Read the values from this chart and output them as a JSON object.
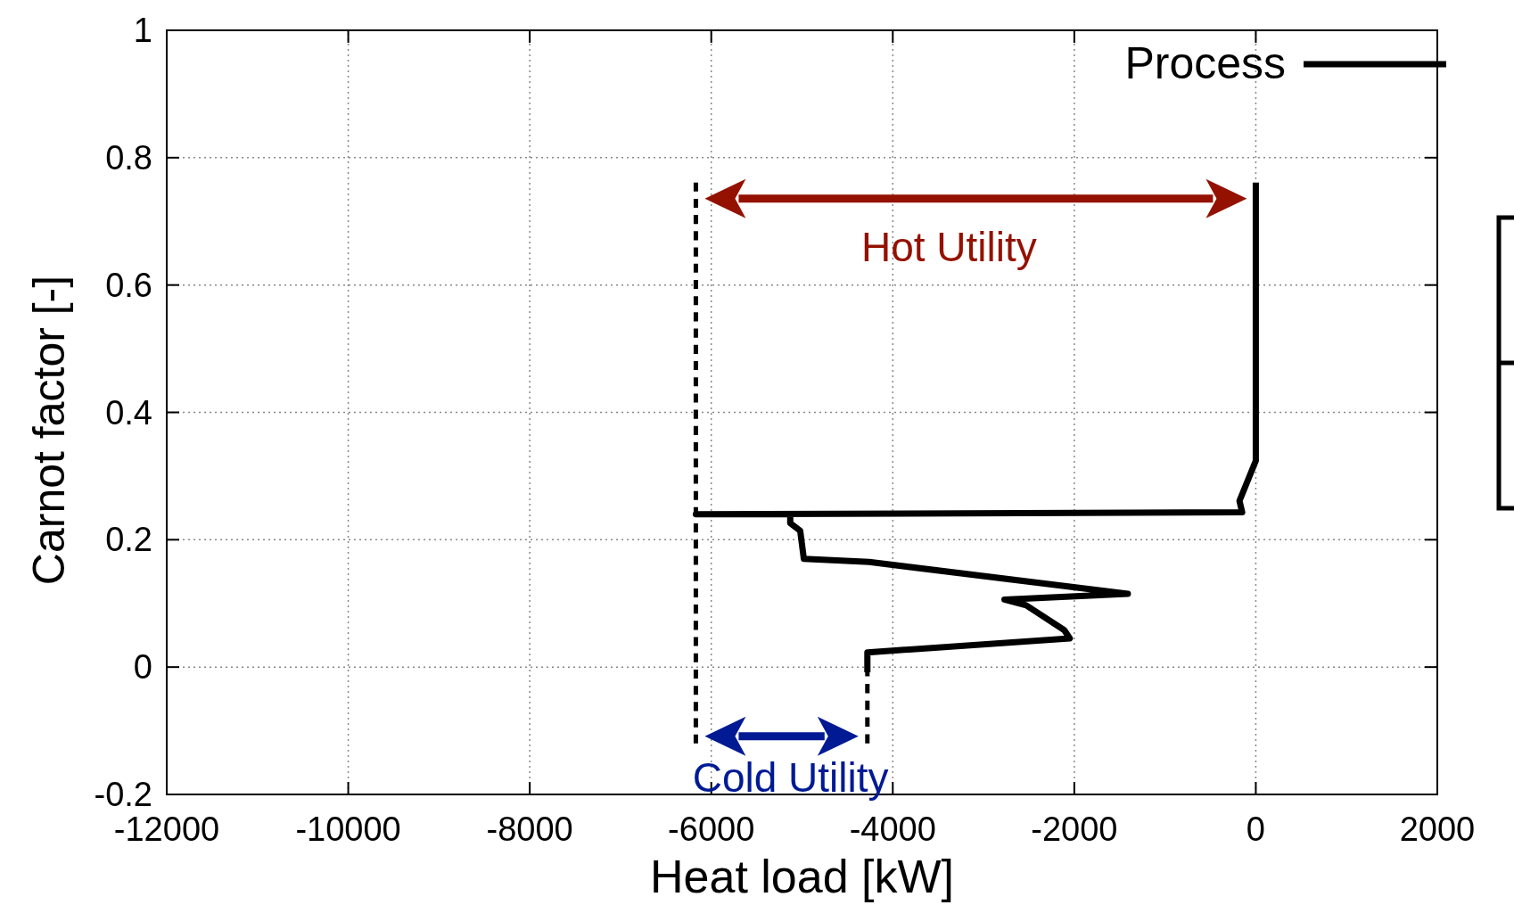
{
  "chart_data": {
    "type": "line",
    "xlabel": "Heat load [kW]",
    "ylabel": "Carnot factor [-]",
    "xlim": [
      -12000,
      2000
    ],
    "xticks": [
      -12000,
      -10000,
      -8000,
      -6000,
      -4000,
      -2000,
      0,
      2000
    ],
    "ylim": [
      -0.2,
      1
    ],
    "yticks": [
      -0.2,
      0,
      0.2,
      0.4,
      0.6,
      0.8,
      1
    ],
    "grid": true,
    "legend": "top right",
    "line_style": "solid",
    "series": [
      {
        "name": "Process",
        "color": "#000000",
        "x": [
          0,
          0,
          -180,
          -150,
          -6170,
          -5130,
          -5130,
          -5020,
          -4980,
          -4260,
          -1410,
          -2770,
          -2530,
          -2110,
          -2050,
          -4280,
          -4280
        ],
        "values": [
          0.761,
          0.324,
          0.261,
          0.243,
          0.24,
          0.24,
          0.226,
          0.214,
          0.17,
          0.165,
          0.115,
          0.106,
          0.097,
          0.058,
          0.045,
          0.023,
          -0.008
        ]
      },
      {
        "color": "#000000",
        "line_style": "dashed",
        "x": [
          -6170,
          -6170
        ],
        "values": [
          0.761,
          -0.12
        ]
      },
      {
        "color": "#000000",
        "line_style": "dashed",
        "x": [
          -4280,
          -4280
        ],
        "values": [
          0,
          -0.12
        ]
      }
    ],
    "annotations": [
      "Hot Utility",
      "Cold Utility"
    ]
  }
}
